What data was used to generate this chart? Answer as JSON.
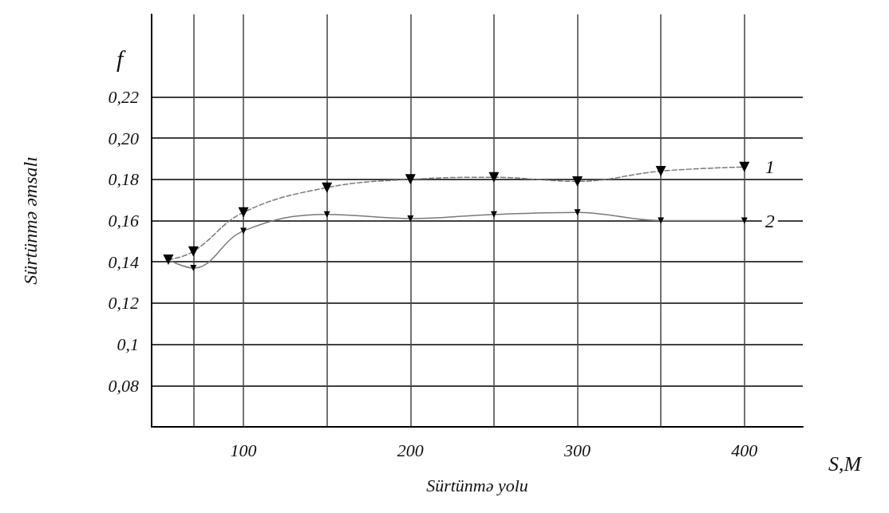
{
  "chart_data": {
    "type": "line",
    "xlabel": "Sürtünmə yolu",
    "ylabel": "Sürtünmə əmsalı",
    "annotations": [
      "f",
      "S,M"
    ],
    "x": [
      55,
      70,
      100,
      150,
      200,
      250,
      300,
      350,
      400
    ],
    "series": [
      {
        "name": "1",
        "color": "#7a7a7a",
        "line_style": "dashed",
        "values": [
          0.141,
          0.145,
          0.164,
          0.176,
          0.18,
          0.181,
          0.179,
          0.184,
          0.186
        ]
      },
      {
        "name": "2",
        "color": "#7a7a7a",
        "line_style": "solid",
        "values": [
          0.141,
          0.137,
          0.155,
          0.163,
          0.161,
          0.163,
          0.164,
          0.16,
          0.16
        ]
      }
    ],
    "marker": "triangle",
    "xlim": [
      45,
      435
    ],
    "xticks": [
      {
        "value": 70,
        "label": null
      },
      100,
      {
        "value": 150,
        "label": null
      },
      200,
      {
        "value": 250,
        "label": null
      },
      300,
      {
        "value": 350,
        "label": null
      },
      400
    ],
    "ylim": [
      0.06,
      0.26
    ],
    "yticks": [
      {
        "value": 0.08,
        "label": "0,08"
      },
      {
        "value": 0.1,
        "label": "0,1"
      },
      {
        "value": 0.12,
        "label": "0,12"
      },
      {
        "value": 0.14,
        "label": "0,14"
      },
      {
        "value": 0.16,
        "label": "0,16"
      },
      {
        "value": 0.18,
        "label": "0,18"
      },
      {
        "value": 0.2,
        "label": "0,20"
      },
      {
        "value": 0.22,
        "label": "0,22"
      }
    ],
    "grid": true,
    "legend": false
  }
}
